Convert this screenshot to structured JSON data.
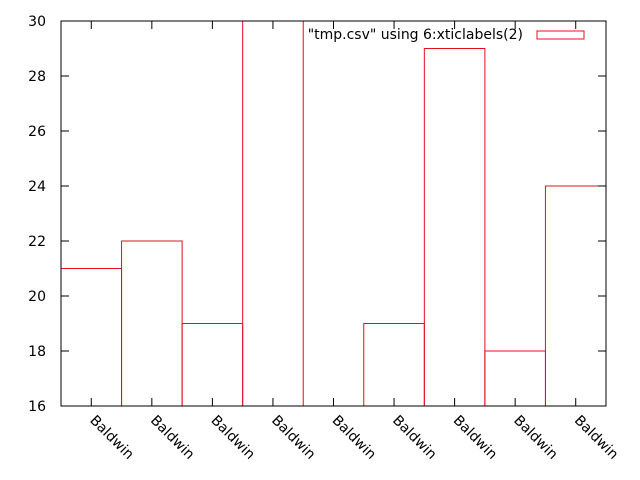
{
  "chart_data": {
    "type": "bar",
    "title": "",
    "xlabel": "",
    "ylabel": "",
    "categories": [
      "Baldwin",
      "Baldwin",
      "Baldwin",
      "Baldwin",
      "Baldwin",
      "Baldwin",
      "Baldwin",
      "Baldwin",
      "Baldwin"
    ],
    "series": [
      {
        "name": "\"tmp.csv\" using 6:xticlabels(2)",
        "values": [
          21,
          22,
          19,
          30,
          16,
          19,
          29,
          18,
          24
        ],
        "color": "#e0101f"
      }
    ],
    "ylim": [
      16,
      30
    ],
    "yticks": [
      16,
      18,
      20,
      22,
      24,
      26,
      28,
      30
    ],
    "grid": false,
    "legend_position": "top-right",
    "bar_style": "outlined boxes"
  }
}
